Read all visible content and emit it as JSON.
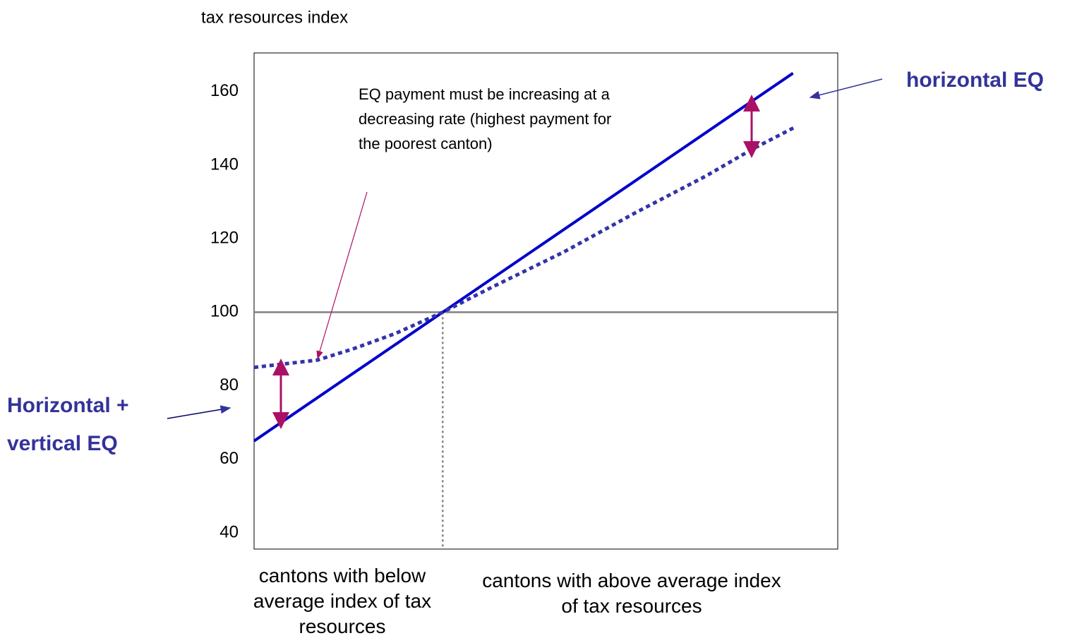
{
  "chart_data": {
    "type": "line",
    "y_axis_label": "tax resources index",
    "xlim": [
      65,
      173.3
    ],
    "ylim": [
      35.6,
      170.5
    ],
    "yticks": [
      40,
      60,
      80,
      100,
      120,
      140,
      160
    ],
    "reference_y": 100,
    "reference_x": 100,
    "series": [
      {
        "color": "#0000cc",
        "style": "solid",
        "x": [
          65,
          165
        ],
        "values": [
          65,
          165
        ]
      },
      {
        "color": "#3333aa",
        "style": "dotted",
        "x": [
          65,
          76.8,
          83.3,
          91.2,
          100,
          109.4,
          122.5,
          135.7,
          148.8,
          157.4,
          165.6
        ],
        "values": [
          85,
          87,
          90,
          94.2,
          100,
          107,
          116.4,
          127,
          137,
          144.3,
          150.5
        ]
      }
    ],
    "category_labels": [
      "cantons with below average index of tax resources",
      "cantons with above average index of tax resources"
    ],
    "annotations": [
      "EQ payment must be increasing at a decreasing rate (highest payment for the poorest canton)",
      "horizontal EQ",
      "Horizontal + vertical EQ"
    ]
  }
}
